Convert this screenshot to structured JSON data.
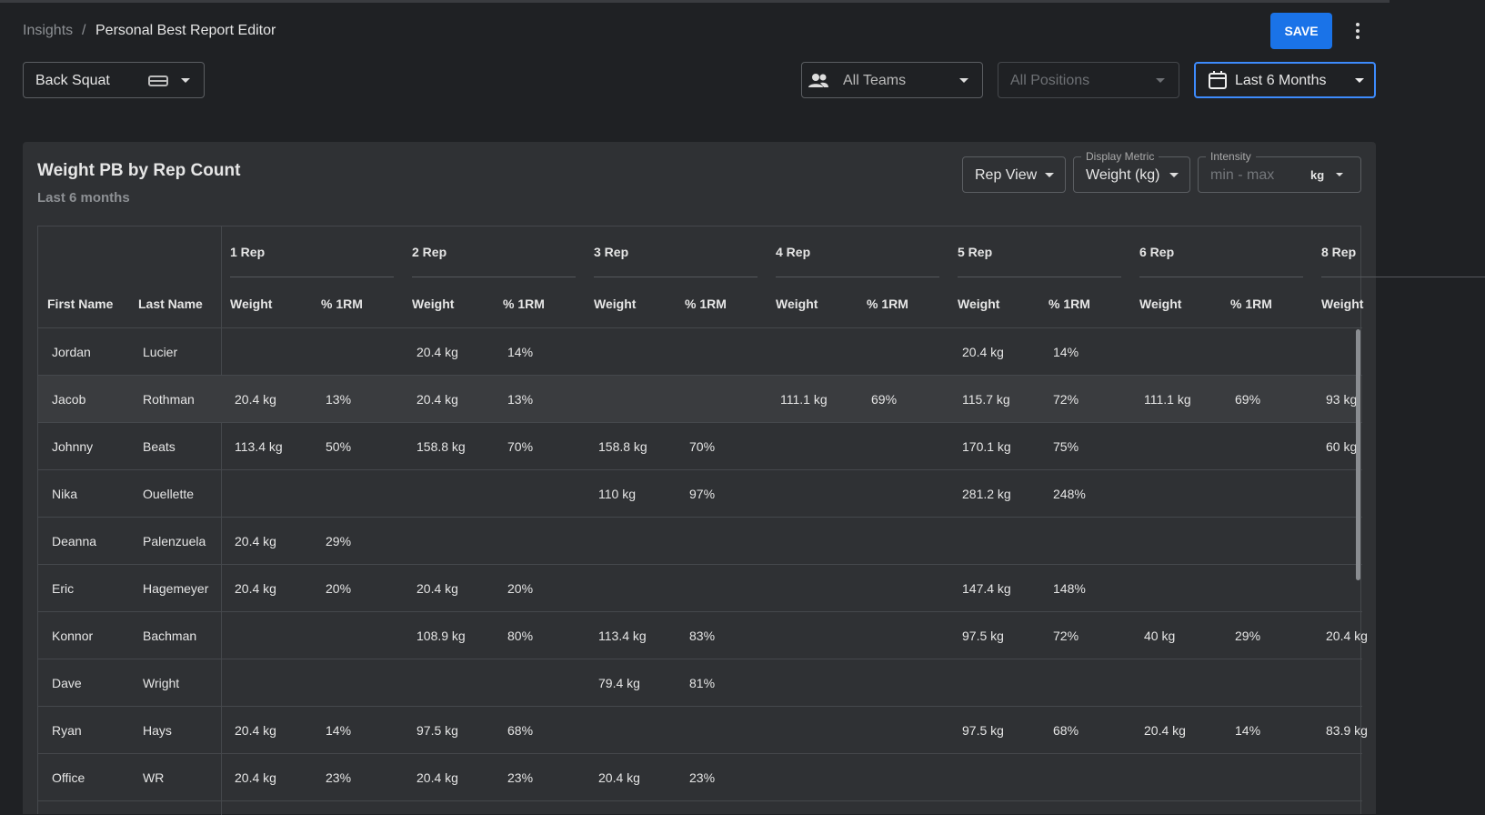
{
  "breadcrumb": {
    "parent": "Insights",
    "separator": "/",
    "current": "Personal Best Report Editor"
  },
  "save": "SAVE",
  "filters": {
    "exercise": "Back Squat",
    "teams": "All Teams",
    "positions": "All Positions",
    "period": "Last 6 Months"
  },
  "card": {
    "title": "Weight PB by Rep Count",
    "subtitle": "Last 6 months",
    "rep_view": "Rep View",
    "display_metric": {
      "label": "Display Metric",
      "value": "Weight (kg)"
    },
    "intensity": {
      "label": "Intensity",
      "placeholder": "min - max",
      "unit": "kg"
    }
  },
  "table": {
    "name_headers": [
      "First Name",
      "Last Name"
    ],
    "groups": [
      {
        "label": "1 Rep",
        "columns": [
          "Weight",
          "% 1RM"
        ]
      },
      {
        "label": "2 Rep",
        "columns": [
          "Weight",
          "% 1RM"
        ]
      },
      {
        "label": "3 Rep",
        "columns": [
          "Weight",
          "% 1RM"
        ]
      },
      {
        "label": "4 Rep",
        "columns": [
          "Weight",
          "% 1RM"
        ]
      },
      {
        "label": "5 Rep",
        "columns": [
          "Weight",
          "% 1RM"
        ]
      },
      {
        "label": "6 Rep",
        "columns": [
          "Weight",
          "% 1RM"
        ]
      },
      {
        "label": "8 Rep",
        "columns": [
          "Weight"
        ]
      }
    ],
    "rows": [
      {
        "first": "Jordan",
        "last": "Lucier",
        "cells": [
          null,
          null,
          "20.4 kg",
          "14%",
          null,
          null,
          null,
          null,
          "20.4 kg",
          "14%",
          null,
          null,
          null
        ]
      },
      {
        "first": "Jacob",
        "last": "Rothman",
        "cells": [
          "20.4 kg",
          "13%",
          "20.4 kg",
          "13%",
          null,
          null,
          "111.1 kg",
          "69%",
          "115.7 kg",
          "72%",
          "111.1 kg",
          "69%",
          "93 kg"
        ]
      },
      {
        "first": "Johnny",
        "last": "Beats",
        "cells": [
          "113.4 kg",
          "50%",
          "158.8 kg",
          "70%",
          "158.8 kg",
          "70%",
          null,
          null,
          "170.1 kg",
          "75%",
          null,
          null,
          "60 kg"
        ]
      },
      {
        "first": "Nika",
        "last": "Ouellette",
        "cells": [
          null,
          null,
          null,
          null,
          "110 kg",
          "97%",
          null,
          null,
          "281.2 kg",
          "248%",
          null,
          null,
          null
        ]
      },
      {
        "first": "Deanna",
        "last": "Palenzuela",
        "cells": [
          "20.4 kg",
          "29%",
          null,
          null,
          null,
          null,
          null,
          null,
          null,
          null,
          null,
          null,
          null
        ]
      },
      {
        "first": "Eric",
        "last": "Hagemeyer",
        "cells": [
          "20.4 kg",
          "20%",
          "20.4 kg",
          "20%",
          null,
          null,
          null,
          null,
          "147.4 kg",
          "148%",
          null,
          null,
          null
        ]
      },
      {
        "first": "Konnor",
        "last": "Bachman",
        "cells": [
          null,
          null,
          "108.9 kg",
          "80%",
          "113.4 kg",
          "83%",
          null,
          null,
          "97.5 kg",
          "72%",
          "40 kg",
          "29%",
          "20.4 kg"
        ]
      },
      {
        "first": "Dave",
        "last": "Wright",
        "cells": [
          null,
          null,
          null,
          null,
          "79.4 kg",
          "81%",
          null,
          null,
          null,
          null,
          null,
          null,
          null
        ]
      },
      {
        "first": "Ryan",
        "last": "Hays",
        "cells": [
          "20.4 kg",
          "14%",
          "97.5 kg",
          "68%",
          null,
          null,
          null,
          null,
          "97.5 kg",
          "68%",
          "20.4 kg",
          "14%",
          "83.9 kg"
        ]
      },
      {
        "first": "Office",
        "last": "WR",
        "cells": [
          "20.4 kg",
          "23%",
          "20.4 kg",
          "23%",
          "20.4 kg",
          "23%",
          null,
          null,
          null,
          null,
          null,
          null,
          null
        ]
      }
    ]
  }
}
